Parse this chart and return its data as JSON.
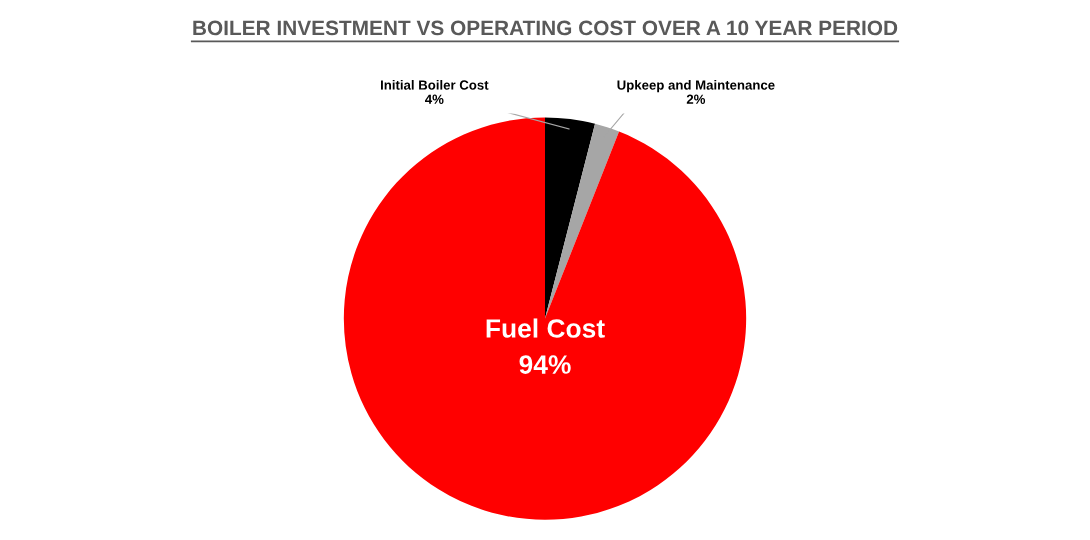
{
  "chart_data": {
    "type": "pie",
    "title": "BOILER INVESTMENT VS OPERATING COST OVER A 10 YEAR PERIOD",
    "categories": [
      "Initial Boiler Cost",
      "Upkeep and Maintenance",
      "Fuel Cost"
    ],
    "values": [
      4,
      2,
      94
    ],
    "colors": [
      "#000000",
      "#a6a6a6",
      "#ff0000"
    ],
    "value_labels": [
      "4%",
      "2%",
      "94%"
    ],
    "legend": false
  }
}
